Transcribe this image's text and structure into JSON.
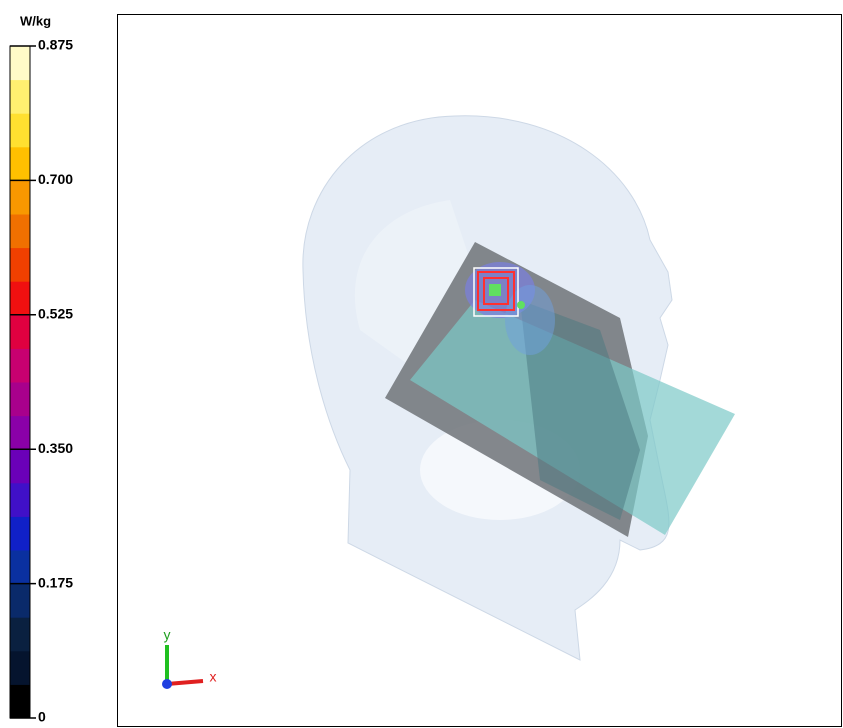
{
  "colorbar": {
    "unit": "W/kg",
    "range": [
      0,
      0.875
    ],
    "ticks": [
      0,
      0.175,
      {
        "value": 0.35,
        "label": "0.350"
      },
      0.525,
      {
        "value": 0.7,
        "label": "0.700"
      },
      0.875
    ],
    "colors": [
      "#000000",
      "#05142e",
      "#0a2040",
      "#0a2a6a",
      "#0a30a0",
      "#1020c8",
      "#4010c8",
      "#6a00b8",
      "#8a00a8",
      "#a8008c",
      "#c80070",
      "#e00040",
      "#f01010",
      "#f04000",
      "#f07000",
      "#f89800",
      "#ffc000",
      "#ffe030",
      "#fff070",
      "#fffbc8"
    ]
  },
  "axes": {
    "x": "x",
    "y": "y"
  }
}
